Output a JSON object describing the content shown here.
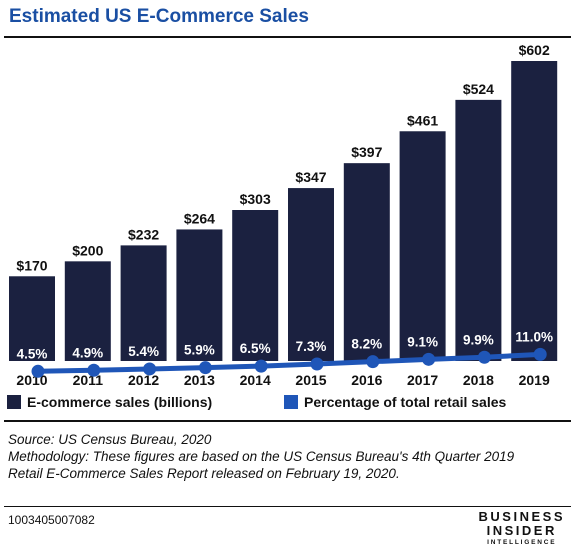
{
  "header": {
    "title": "Estimated US E-Commerce Sales"
  },
  "legend": {
    "bars": "E-commerce sales (billions)",
    "line": "Percentage of total retail sales"
  },
  "footer": {
    "source": "Source: US Census Bureau, 2020",
    "methodology": "Methodology: These figures are based on the US Census Bureau's 4th Quarter 2019 Retail E-Commerce Sales Report released on February 19, 2020.",
    "chart_id": "1003405007082",
    "brand": {
      "line1": "BUSINESS",
      "line2": "INSIDER",
      "line3": "INTELLIGENCE"
    }
  },
  "colors": {
    "bar": "#1b2140",
    "line": "#1f56b8",
    "title": "#1a4fa3",
    "label": "#ffffff"
  },
  "chart_data": {
    "type": "bar",
    "title": "Estimated US E-Commerce Sales",
    "categories": [
      "2010",
      "2011",
      "2012",
      "2013",
      "2014",
      "2015",
      "2016",
      "2017",
      "2018",
      "2019"
    ],
    "series": [
      {
        "name": "E-commerce sales (billions)",
        "type": "bar",
        "values": [
          170,
          200,
          232,
          264,
          303,
          347,
          397,
          461,
          524,
          602
        ],
        "labels": [
          "$170",
          "$200",
          "$232",
          "$264",
          "$303",
          "$347",
          "$397",
          "$461",
          "$524",
          "$602"
        ]
      },
      {
        "name": "Percentage of total retail sales",
        "type": "line",
        "values": [
          4.5,
          4.9,
          5.4,
          5.9,
          6.5,
          7.3,
          8.2,
          9.1,
          9.9,
          11.0
        ],
        "labels": [
          "4.5%",
          "4.9%",
          "5.4%",
          "5.9%",
          "6.5%",
          "7.3%",
          "8.2%",
          "9.1%",
          "9.9%",
          "11.0%"
        ]
      }
    ],
    "ylim": [
      0,
      620
    ],
    "grid": false,
    "legend_position": "bottom"
  }
}
